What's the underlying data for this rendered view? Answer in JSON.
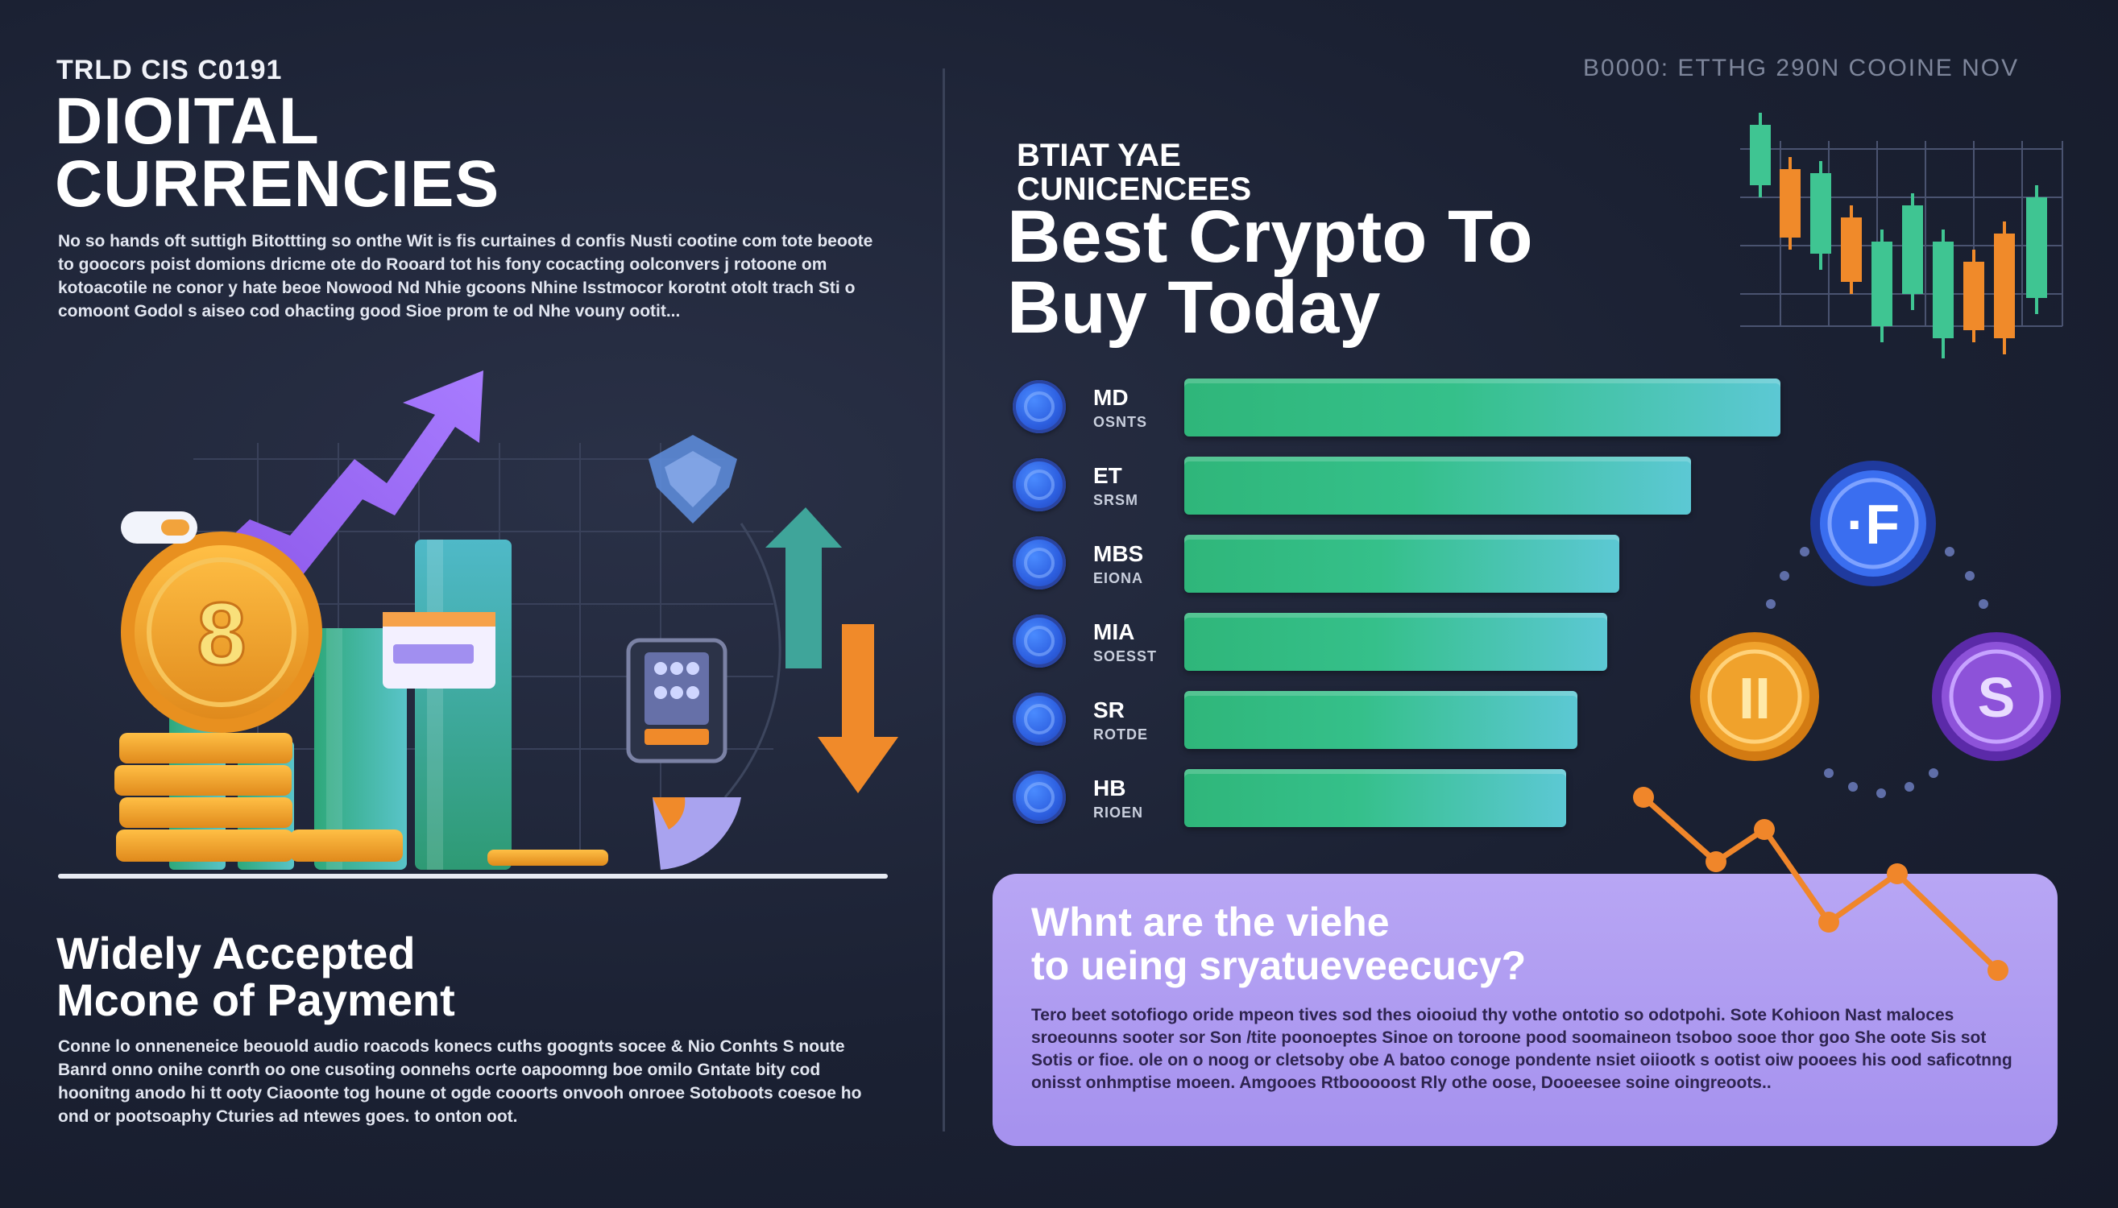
{
  "left": {
    "kicker": "TRLD CIS C0191",
    "title_lines": [
      "DIOITAL",
      "CURRENCIES"
    ],
    "intro": "No so hands oft suttigh Bitottting so onthe Wit is fis curtaines d confis Nusti cootine com tote beoote to goocors poist domions dricme ote do Rooard tot his fony cocacting oolconvers j rotoone om kotoacotile ne conor y hate beoe Nowood Nd Nhie gcoons Nhine Isstmocor korotnt otolt trach Sti o comoont Godol s aiseo cod ohacting good Sioe prom te od Nhe vouny ootit...",
    "subtitle_lines": [
      "Widely Accepted",
      "Mcone of Payment"
    ],
    "outro": "Conne lo onneneneice beouold audio roacods konecs cuths goognts socee & Nio Conhts S noute Banrd onno onihe conrth oo one cusoting oonnehs ocrte oapoomng boe omilo Gntate bity cod hoonitng anodo hi tt ooty Ciaoonte tog houne ot ogde cooorts onvooh onroee Sotoboots coesoe ho ond or pootsoaphy Cturies ad ntewes goes. to onton oot."
  },
  "right": {
    "topline": "B0000: ETTHG 290N COOINE NOV",
    "kicker_lines": [
      "BTIAT YAE",
      "CUNICENCEES"
    ],
    "title_lines": [
      "Best Crypto To",
      "Buy Today"
    ],
    "coins": [
      {
        "symbol": "MD",
        "name": "OSNTS",
        "value": 100
      },
      {
        "symbol": "ET",
        "name": "SRSM",
        "value": 85
      },
      {
        "symbol": "MBS",
        "name": "EIONA",
        "value": 73
      },
      {
        "symbol": "MIA",
        "name": "SOESST",
        "value": 71
      },
      {
        "symbol": "SR",
        "name": "ROTDE",
        "value": 66
      },
      {
        "symbol": "HB",
        "name": "RIOEN",
        "value": 64
      }
    ],
    "network_coins": [
      {
        "glyph": "·F",
        "color": "#3a6ef0"
      },
      {
        "glyph": "II",
        "color": "#f0a22c"
      },
      {
        "glyph": "S",
        "color": "#8d52d9"
      }
    ],
    "question_lines": [
      "Whnt are the viehe",
      "to ueing sryatueveecucy?"
    ],
    "answer": "Tero beet sotofiogo oride mpeon tives sod thes oiooiud thy vothe ontotio so odotpohi. Sote Kohioon Nast maloces sroeounns sooter sor Son /tite poonoeptes Sinoe on toroone pood soomaineon tsoboo sooe thor goo She oote Sis sot Sotis or fioe. ole on o noog or cletsoby obe A batoo conoge pondente nsiet oiiootk s ootist oiw pooees his ood saficotnng onisst onhmptise moeen. Amgooes Rtbooooost Rly othe oose, Dooeesee soine oingreoots.."
  },
  "colors": {
    "background": "#1b2133",
    "bar_start": "#2fb67a",
    "bar_end": "#5cc8d4",
    "coin_blue": "#2d5fe0",
    "card": "#b09bf2",
    "candle_green": "#3fc592",
    "candle_orange": "#f08a2a",
    "arrow_purple": "#9a63f0"
  }
}
